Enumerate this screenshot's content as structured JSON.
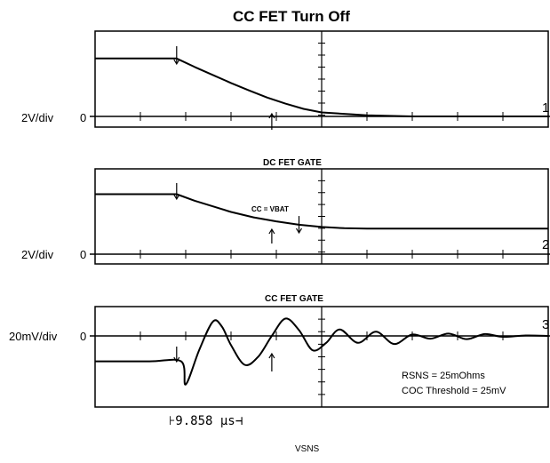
{
  "title": "CC FET Turn Off",
  "time_readout": "⊦9.858 μs⊣",
  "chart_data": [
    {
      "type": "line",
      "channel": "1",
      "title": "",
      "scale_label": "2V/div",
      "zero_label": "0",
      "divisions": {
        "x": 10,
        "y": 4
      },
      "grid": false,
      "series": [
        {
          "x": [
            0,
            1.1,
            1.8,
            2.2,
            2.6,
            3.0,
            3.4,
            3.8,
            4.2,
            4.6,
            5.0,
            6.0,
            7.0,
            8.0,
            9.0,
            10.0
          ],
          "y": [
            2.9,
            2.9,
            2.9,
            2.47,
            2.07,
            1.67,
            1.3,
            0.94,
            0.64,
            0.38,
            0.2,
            0.06,
            0.0,
            0.0,
            0.0,
            0.0
          ]
        }
      ],
      "markers": [
        {
          "direction": "down",
          "x": 1.8
        },
        {
          "direction": "up",
          "x": 3.9
        }
      ]
    },
    {
      "type": "line",
      "channel": "2",
      "title": "DC FET GATE",
      "scale_label": "2V/div",
      "zero_label": "0",
      "divisions": {
        "x": 10,
        "y": 4
      },
      "grid": false,
      "series": [
        {
          "x": [
            0,
            1.1,
            1.8,
            2.2,
            2.6,
            3.0,
            3.5,
            4.0,
            4.5,
            5.0,
            5.5,
            6.0,
            7.0,
            8.0,
            9.0,
            10.0
          ],
          "y": [
            3.0,
            3.0,
            3.0,
            2.67,
            2.39,
            2.11,
            1.84,
            1.64,
            1.47,
            1.36,
            1.3,
            1.28,
            1.28,
            1.28,
            1.28,
            1.28
          ]
        }
      ],
      "markers": [
        {
          "direction": "down",
          "x": 1.8
        },
        {
          "direction": "up",
          "x": 3.9
        },
        {
          "direction": "down",
          "x": 4.5
        }
      ],
      "annotations": [
        {
          "text": "CC = VBAT"
        }
      ]
    },
    {
      "type": "line",
      "channel": "3",
      "title": "CC FET GATE",
      "scale_label": "20mV/div",
      "zero_label": "0",
      "xlabel": "VSNS",
      "divisions": {
        "x": 10,
        "y": 4
      },
      "grid": false,
      "series": [
        {
          "x": [
            0,
            1.2,
            1.9,
            2.0,
            2.3,
            2.6,
            2.8,
            3.0,
            3.3,
            3.6,
            3.9,
            4.2,
            4.5,
            4.8,
            5.1,
            5.4,
            5.8,
            6.2,
            6.6,
            7.0,
            7.4,
            7.8,
            8.2,
            8.6,
            9.0,
            9.5,
            10.0
          ],
          "y": [
            -1.1,
            -1.1,
            -1.1,
            -2.1,
            -0.6,
            0.62,
            0.4,
            -0.4,
            -1.25,
            -0.9,
            0.0,
            0.75,
            0.25,
            -0.62,
            -0.3,
            0.28,
            -0.3,
            0.18,
            -0.35,
            0.06,
            -0.12,
            0.1,
            -0.14,
            0.08,
            -0.04,
            0.02,
            0.0
          ]
        }
      ],
      "markers": [
        {
          "direction": "down",
          "x": 1.8
        },
        {
          "direction": "up",
          "x": 3.9
        }
      ],
      "annotations": [
        {
          "text": "RSNS = 25mOhms"
        },
        {
          "text": "COC Threshold = 25mV"
        }
      ]
    }
  ]
}
